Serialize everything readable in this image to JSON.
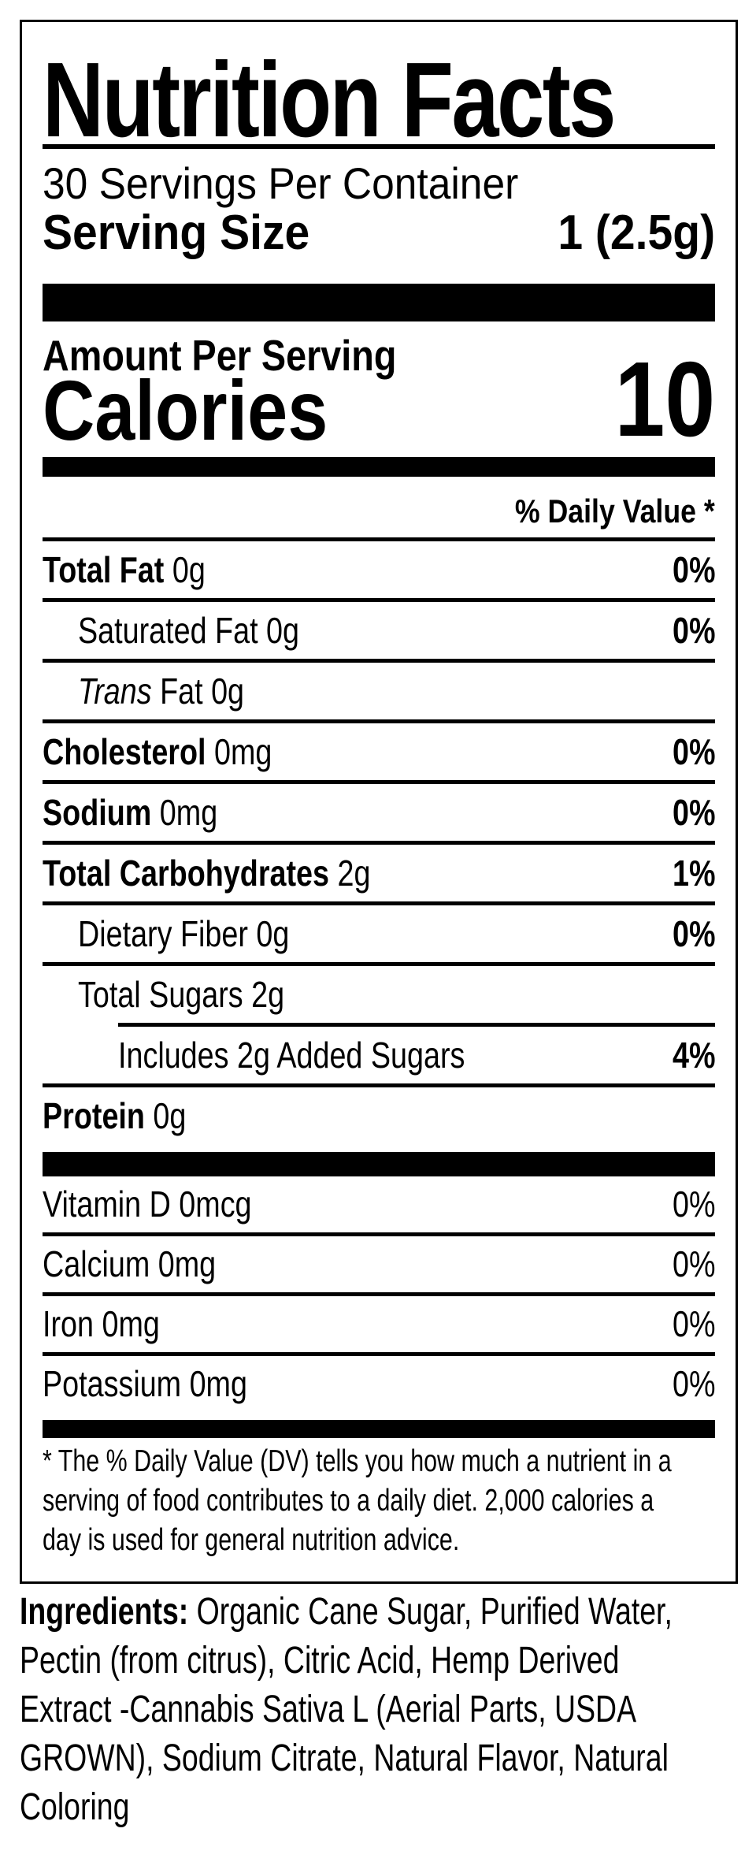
{
  "label": {
    "title": "Nutrition Facts",
    "servings_per_container": "30 Servings Per Container",
    "serving_size_label": "Serving Size",
    "serving_size_value": "1 (2.5g)",
    "amount_per_serving": "Amount Per Serving",
    "calories_label": "Calories",
    "calories_value": "10",
    "daily_value_header": "% Daily Value *",
    "nutrients": [
      {
        "bold": "Total Fat",
        "text": "0g",
        "dv": "0%",
        "indent": 0
      },
      {
        "text": "Saturated Fat 0g",
        "dv": "0%",
        "indent": 1
      },
      {
        "italic": "Trans",
        "text": "Fat 0g",
        "dv": "",
        "indent": 1
      },
      {
        "bold": "Cholesterol",
        "text": "0mg",
        "dv": "0%",
        "indent": 0
      },
      {
        "bold": "Sodium",
        "text": "0mg",
        "dv": "0%",
        "indent": 0
      },
      {
        "bold": "Total Carbohydrates",
        "text": "2g",
        "dv": "1%",
        "indent": 0
      },
      {
        "text": "Dietary Fiber 0g",
        "dv": "0%",
        "indent": 1
      },
      {
        "text": "Total Sugars 2g",
        "dv": "",
        "indent": 1,
        "rule": "indent"
      },
      {
        "text": "Includes 2g Added Sugars",
        "dv": "4%",
        "indent": 2
      },
      {
        "bold": "Protein",
        "text": "0g",
        "dv": "",
        "indent": 0,
        "rule": "none"
      }
    ],
    "vitamins": [
      {
        "text": "Vitamin D 0mcg",
        "dv": "0%"
      },
      {
        "text": "Calcium 0mg",
        "dv": "0%"
      },
      {
        "text": "Iron 0mg",
        "dv": "0%"
      },
      {
        "text": "Potassium 0mg",
        "dv": "0%",
        "rule": "none"
      }
    ],
    "footnote_lines": [
      "* The % Daily Value (DV) tells you how much a nutrient in a",
      "serving of food contributes to a daily diet. 2,000 calories a",
      "day is used for general nutrition advice."
    ]
  },
  "ingredients": {
    "heading": "Ingredients:",
    "lines": [
      "Organic Cane Sugar, Purified Water,",
      "Pectin (from citrus), Citric Acid, Hemp Derived",
      "Extract -Cannabis Sativa L (Aerial Parts, USDA",
      "GROWN), Sodium Citrate, Natural Flavor, Natural",
      "Coloring"
    ]
  },
  "colors": {
    "text": "#000000",
    "background": "#ffffff"
  }
}
